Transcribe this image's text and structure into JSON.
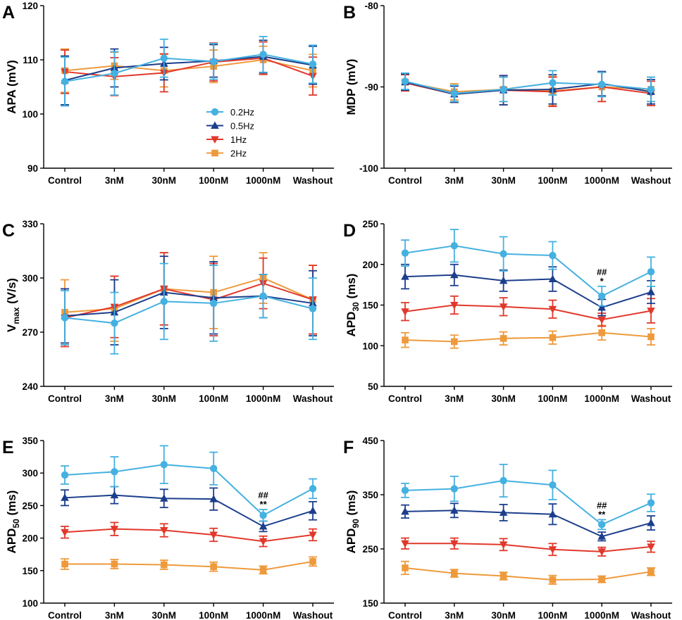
{
  "colors": {
    "hz02": "#45B1E0",
    "hz05": "#1C3E8C",
    "hz1": "#E1382B",
    "hz2": "#EE9A3C"
  },
  "chart_data": [
    {
      "panel": "A",
      "type": "line",
      "ylabel": "APA (mV)",
      "categories": [
        "Control",
        "3nM",
        "30nM",
        "100nM",
        "1000nM",
        "Washout"
      ],
      "ylim": [
        90,
        120
      ],
      "yticks": [
        90,
        100,
        110,
        120
      ],
      "legend": {
        "placement": "center",
        "entries": [
          "0.2Hz",
          "0.5Hz",
          "1Hz",
          "2Hz"
        ]
      },
      "series": [
        {
          "name": "0.2Hz",
          "values": [
            106.0,
            107.5,
            110.3,
            109.7,
            111.0,
            109.2
          ],
          "errors": [
            4.5,
            4.0,
            3.5,
            3.3,
            3.3,
            3.5
          ]
        },
        {
          "name": "0.5Hz",
          "values": [
            106.2,
            108.5,
            109.3,
            109.8,
            110.6,
            109.0
          ],
          "errors": [
            4.5,
            3.5,
            3.0,
            3.0,
            3.0,
            3.5
          ]
        },
        {
          "name": "1Hz",
          "values": [
            107.8,
            106.9,
            107.6,
            109.6,
            110.3,
            107.0
          ],
          "errors": [
            4.0,
            3.5,
            3.5,
            3.5,
            3.0,
            3.5
          ]
        },
        {
          "name": "2Hz",
          "values": [
            108.0,
            108.9,
            108.0,
            108.8,
            110.0,
            108.0
          ],
          "errors": [
            4.0,
            2.5,
            3.0,
            3.0,
            2.5,
            3.0
          ]
        }
      ]
    },
    {
      "panel": "B",
      "type": "line",
      "ylabel": "MDP (mV)",
      "categories": [
        "Control",
        "3nM",
        "30nM",
        "100nM",
        "1000nM",
        "Washout"
      ],
      "ylim": [
        -100,
        -80
      ],
      "yticks": [
        -100,
        -90,
        -80
      ],
      "series": [
        {
          "name": "0.2Hz",
          "values": [
            -89.3,
            -90.8,
            -90.3,
            -89.5,
            -89.7,
            -90.3
          ],
          "errors": [
            1.0,
            1.0,
            1.5,
            1.5,
            1.5,
            1.5
          ]
        },
        {
          "name": "0.5Hz",
          "values": [
            -89.4,
            -90.9,
            -90.4,
            -90.3,
            -89.6,
            -90.6
          ],
          "errors": [
            1.0,
            1.0,
            1.8,
            1.8,
            1.5,
            1.5
          ]
        },
        {
          "name": "1Hz",
          "values": [
            -89.5,
            -90.9,
            -90.4,
            -90.6,
            -90.0,
            -90.8
          ],
          "errors": [
            1.0,
            1.0,
            1.8,
            1.8,
            1.8,
            1.5
          ]
        },
        {
          "name": "2Hz",
          "values": [
            -89.4,
            -90.6,
            -90.3,
            -90.5,
            -90.0,
            -90.3
          ],
          "errors": [
            1.0,
            1.0,
            1.5,
            1.8,
            1.8,
            1.5
          ]
        }
      ]
    },
    {
      "panel": "C",
      "type": "line",
      "ylabel_main": "V",
      "ylabel_sub": "max",
      "ylabel_tail": " (V/s)",
      "categories": [
        "Control",
        "3nM",
        "30nM",
        "100nM",
        "1000nM",
        "Washout"
      ],
      "ylim": [
        240,
        330
      ],
      "yticks": [
        240,
        270,
        300,
        330
      ],
      "series": [
        {
          "name": "0.2Hz",
          "values": [
            278,
            275,
            287,
            286,
            290,
            283
          ],
          "errors": [
            15,
            17,
            21,
            21,
            12,
            17
          ]
        },
        {
          "name": "0.5Hz",
          "values": [
            279,
            281,
            292,
            289,
            290,
            286
          ],
          "errors": [
            15,
            18,
            20,
            20,
            12,
            18
          ]
        },
        {
          "name": "1Hz",
          "values": [
            278,
            284,
            294,
            288,
            297,
            288
          ],
          "errors": [
            16,
            17,
            20,
            20,
            14,
            19
          ]
        },
        {
          "name": "2Hz",
          "values": [
            281,
            283,
            294,
            292,
            300,
            288
          ],
          "errors": [
            18,
            18,
            20,
            20,
            14,
            19
          ]
        }
      ]
    },
    {
      "panel": "D",
      "type": "line",
      "ylabel_main": "APD",
      "ylabel_sub": "30",
      "ylabel_tail": " (ms)",
      "categories": [
        "Control",
        "3nM",
        "30nM",
        "100nM",
        "1000nM",
        "Washout"
      ],
      "ylim": [
        50,
        250
      ],
      "yticks": [
        50,
        100,
        150,
        200,
        250
      ],
      "annotation": {
        "category": "1000nM",
        "line1": "##",
        "line2": "*"
      },
      "series": [
        {
          "name": "0.2Hz",
          "values": [
            214,
            223,
            213,
            211,
            161,
            191
          ],
          "errors": [
            16,
            20,
            21,
            17,
            12,
            18
          ]
        },
        {
          "name": "0.5Hz",
          "values": [
            185,
            187,
            180,
            182,
            147,
            166
          ],
          "errors": [
            15,
            13,
            13,
            15,
            10,
            14
          ]
        },
        {
          "name": "1Hz",
          "values": [
            142,
            150,
            148,
            145,
            132,
            143
          ],
          "errors": [
            11,
            11,
            11,
            11,
            8,
            15
          ]
        },
        {
          "name": "2Hz",
          "values": [
            107,
            105,
            109,
            110,
            116,
            111
          ],
          "errors": [
            9,
            8,
            8,
            8,
            9,
            10
          ]
        }
      ]
    },
    {
      "panel": "E",
      "type": "line",
      "ylabel_main": "APD",
      "ylabel_sub": "50",
      "ylabel_tail": " (ms)",
      "categories": [
        "Control",
        "3nM",
        "30nM",
        "100nM",
        "1000nM",
        "Washout"
      ],
      "ylim": [
        100,
        350
      ],
      "yticks": [
        100,
        150,
        200,
        250,
        300,
        350
      ],
      "annotation": {
        "category": "1000nM",
        "line1": "##",
        "line2": "**"
      },
      "series": [
        {
          "name": "0.2Hz",
          "values": [
            297,
            302,
            313,
            307,
            235,
            276
          ],
          "errors": [
            14,
            23,
            29,
            25,
            9,
            15
          ]
        },
        {
          "name": "0.5Hz",
          "values": [
            262,
            266,
            261,
            260,
            218,
            242
          ],
          "errors": [
            12,
            13,
            14,
            17,
            8,
            14
          ]
        },
        {
          "name": "1Hz",
          "values": [
            209,
            214,
            212,
            205,
            195,
            205
          ],
          "errors": [
            9,
            10,
            10,
            10,
            8,
            9
          ]
        },
        {
          "name": "2Hz",
          "values": [
            160,
            160,
            159,
            156,
            151,
            164
          ],
          "errors": [
            8,
            7,
            7,
            7,
            6,
            7
          ]
        }
      ]
    },
    {
      "panel": "F",
      "type": "line",
      "ylabel_main": "APD",
      "ylabel_sub": "90",
      "ylabel_tail": " (ms)",
      "categories": [
        "Control",
        "3nM",
        "30nM",
        "100nM",
        "1000nM",
        "Washout"
      ],
      "ylim": [
        150,
        450
      ],
      "yticks": [
        150,
        250,
        350,
        450
      ],
      "annotation": {
        "category": "1000nM",
        "line1": "##",
        "line2": "**"
      },
      "series": [
        {
          "name": "0.2Hz",
          "values": [
            358,
            361,
            376,
            368,
            295,
            335
          ],
          "errors": [
            13,
            23,
            30,
            27,
            9,
            16
          ]
        },
        {
          "name": "0.5Hz",
          "values": [
            319,
            321,
            317,
            314,
            273,
            298
          ],
          "errors": [
            12,
            13,
            15,
            19,
            8,
            13
          ]
        },
        {
          "name": "1Hz",
          "values": [
            260,
            260,
            258,
            249,
            245,
            254
          ],
          "errors": [
            10,
            10,
            11,
            11,
            8,
            10
          ]
        },
        {
          "name": "2Hz",
          "values": [
            215,
            205,
            200,
            193,
            194,
            208
          ],
          "errors": [
            12,
            7,
            7,
            8,
            6,
            7
          ]
        }
      ]
    }
  ]
}
